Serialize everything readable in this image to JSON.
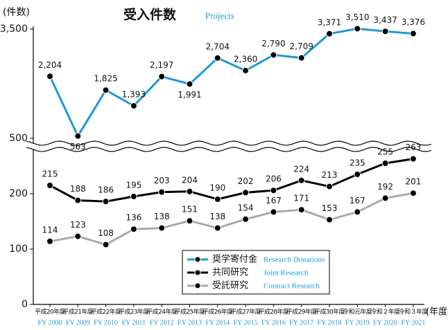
{
  "chart_data": {
    "type": "line",
    "title": "受入件数",
    "subtitle": "Projects",
    "y_label": "(件数)",
    "x_label": "(年度)",
    "categories": [
      "平成20年度",
      "平成21年度",
      "平成22年度",
      "平成23年度",
      "平成24年度",
      "平成25年度",
      "平成26年度",
      "平成27年度",
      "平成28年度",
      "平成29年度",
      "平成30年度",
      "令和元年度",
      "令和２年度",
      "令和３年度"
    ],
    "categories_en": [
      "FY 2008",
      "FY 2009",
      "FY 2010",
      "FY 2011",
      "FY 2012",
      "FY 2013",
      "FY 2014",
      "FY 2015",
      "FY 2016",
      "FY 2017",
      "FY 2018",
      "FY 2019",
      "FY 2020",
      "FY 2021"
    ],
    "ylim": [
      0,
      300
    ],
    "yticks": [
      0,
      100,
      200
    ],
    "y2lim": [
      500,
      3500
    ],
    "y2ticks": [
      {
        "value": 3500,
        "label": "3,500"
      },
      500
    ],
    "series": [
      {
        "name": "奨学寄付金",
        "name_en": "Research Donations",
        "color": "#1a9ad6",
        "axis": "y2",
        "values": [
          2204,
          563,
          1825,
          1393,
          2197,
          1991,
          2704,
          2360,
          2790,
          2709,
          3371,
          3510,
          3437,
          3376
        ],
        "value_labels": [
          "2,204",
          "563",
          "1,825",
          "1,393",
          "2,197",
          "1,991",
          "2,704",
          "2,360",
          "2,790",
          "2,709",
          "3,371",
          "3,510",
          "3,437",
          "3,376"
        ]
      },
      {
        "name": "共同研究",
        "name_en": "Joint Research",
        "color": "#000000",
        "values": [
          215,
          188,
          186,
          195,
          203,
          204,
          190,
          202,
          206,
          224,
          213,
          235,
          255,
          263
        ]
      },
      {
        "name": "受託研究",
        "name_en": "Contract Research",
        "color": "#aaaaaa",
        "values": [
          114,
          123,
          108,
          136,
          138,
          151,
          138,
          154,
          167,
          171,
          153,
          167,
          192,
          201
        ]
      }
    ]
  }
}
